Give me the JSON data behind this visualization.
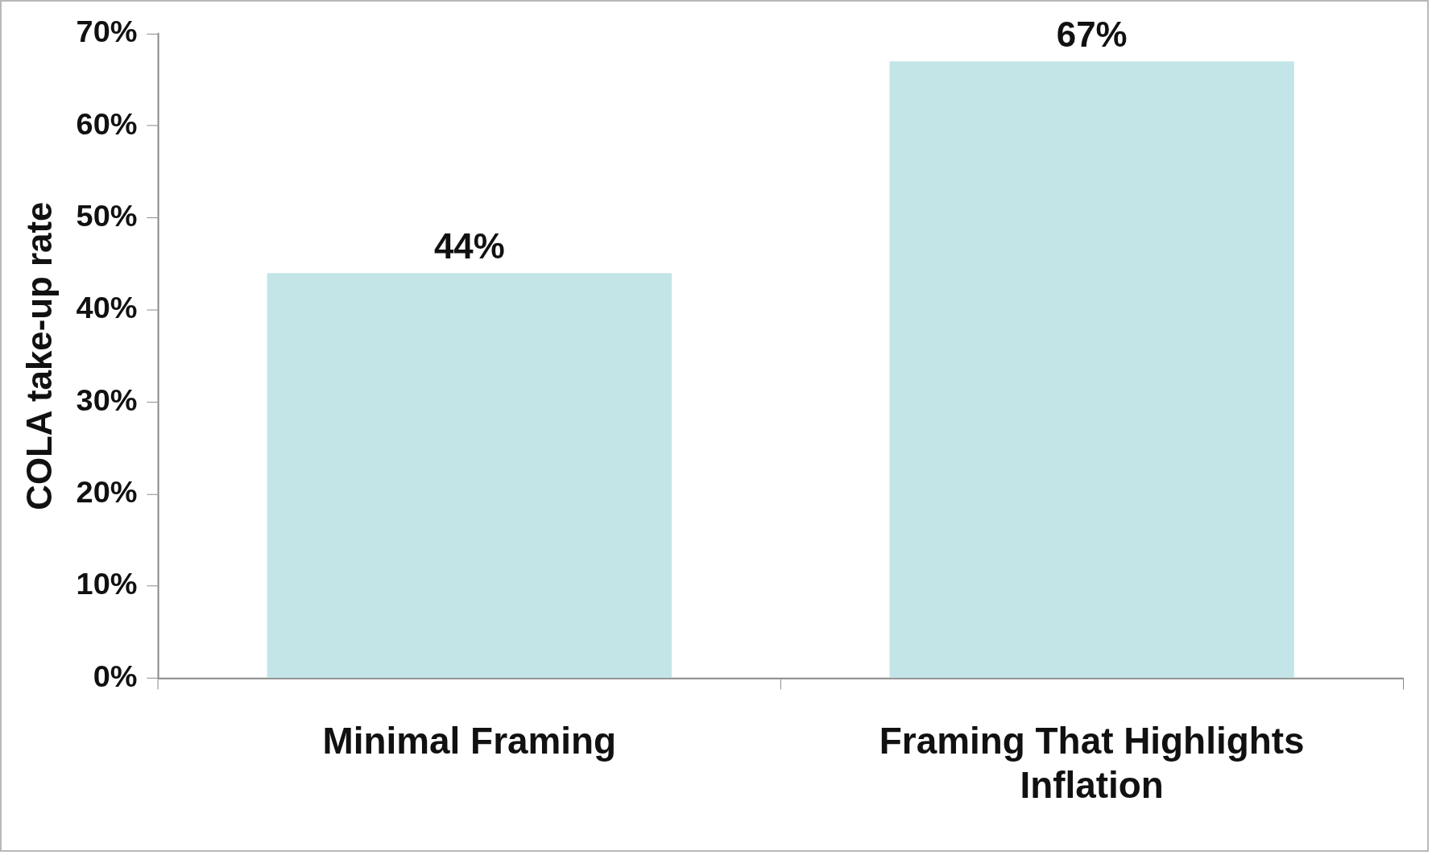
{
  "chart_data": {
    "type": "bar",
    "ylabel": "COLA take-up rate",
    "categories": [
      "Minimal Framing",
      "Framing That Highlights Inflation"
    ],
    "values": [
      44,
      67
    ],
    "value_labels": [
      "44%",
      "67%"
    ],
    "color": "#c3e5e7",
    "ylim": [
      0,
      70
    ],
    "yticks": [
      {
        "value": 0,
        "label": "0%"
      },
      {
        "value": 10,
        "label": "10%"
      },
      {
        "value": 20,
        "label": "20%"
      },
      {
        "value": 30,
        "label": "30%"
      },
      {
        "value": 40,
        "label": "40%"
      },
      {
        "value": 50,
        "label": "50%"
      },
      {
        "value": 60,
        "label": "60%"
      },
      {
        "value": 70,
        "label": "70%"
      }
    ]
  }
}
